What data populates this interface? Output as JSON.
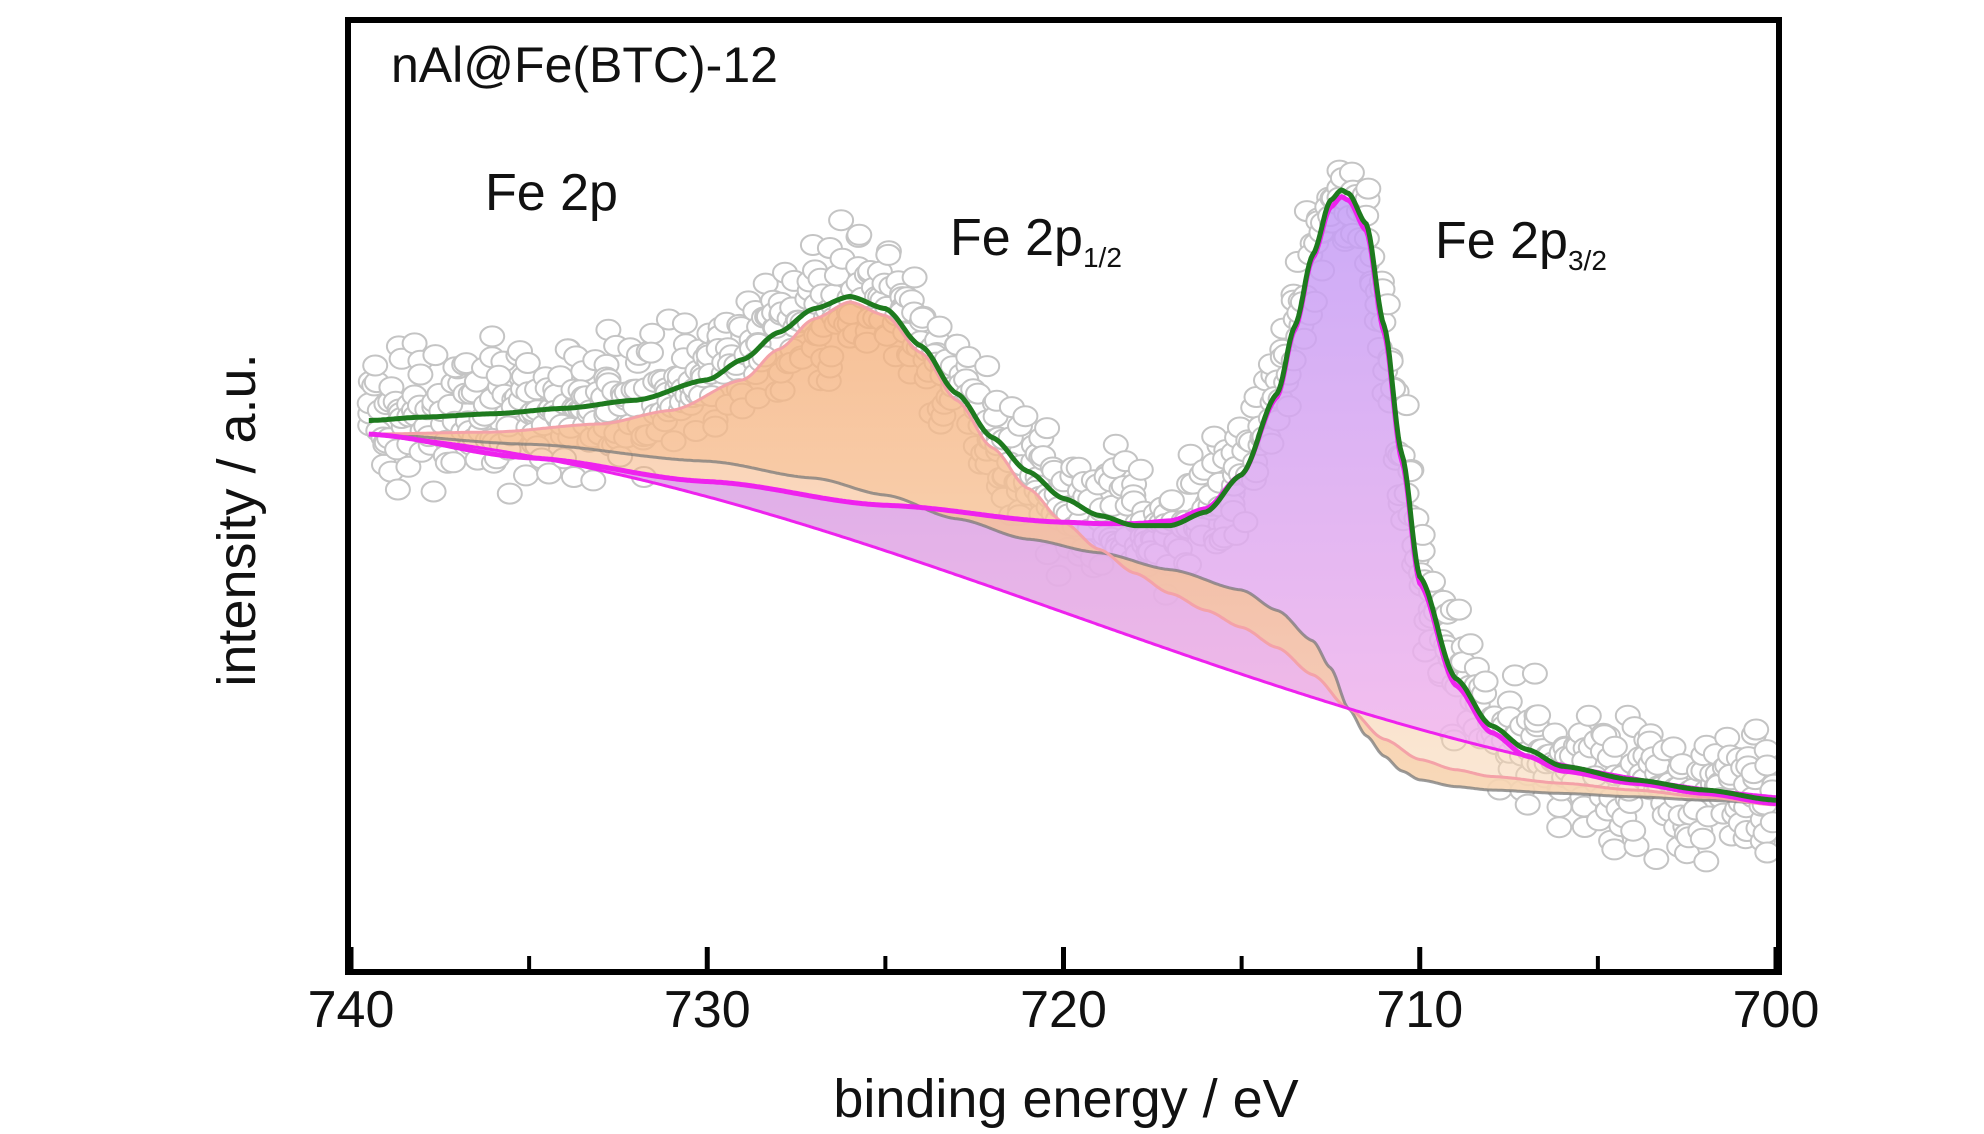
{
  "chart_data": {
    "type": "line",
    "title": "nAl@Fe(BTC)-12",
    "xlabel": "binding energy / eV",
    "ylabel": "intensity / a.u.",
    "xlim": [
      740,
      700
    ],
    "x_reversed": true,
    "ylim": [
      0,
      100
    ],
    "y_ticks_shown": false,
    "grid": false,
    "x_ticks": [
      740,
      730,
      720,
      710,
      700
    ],
    "x_minor_ticks": [
      735,
      725,
      715,
      705
    ],
    "colors": {
      "envelope": "#1e7a1e",
      "fe2p32_fit": "#ee22ee",
      "fe2p12_fill": "#f5b27e",
      "fe2p32_fill": "#c9a0f5",
      "background": "#ee22ee",
      "satellite_line": "#7a7a7a",
      "data_points": "#c4c4c4"
    },
    "annotations": [
      {
        "text": "Fe 2p",
        "sub": ""
      },
      {
        "text": "Fe 2p",
        "sub": "1/2"
      },
      {
        "text": "Fe 2p",
        "sub": "3/2"
      }
    ],
    "series": [
      {
        "role": "envelope",
        "x": [
          739.5,
          738,
          736,
          734,
          732,
          730,
          729,
          728,
          727,
          726,
          725,
          724,
          723,
          722,
          721,
          720,
          719,
          718,
          717,
          716,
          715,
          714,
          713.5,
          713,
          712.5,
          712.2,
          712,
          711.5,
          711,
          710.5,
          710,
          709,
          708,
          707,
          706,
          704,
          702,
          700
        ],
        "y": [
          66,
          66.5,
          67,
          67.8,
          69,
          72,
          75,
          79,
          82.5,
          84.3,
          82.5,
          77,
          70,
          63.5,
          58.5,
          54.5,
          52,
          50.5,
          50.5,
          52.5,
          58,
          70,
          80,
          90.5,
          98.5,
          100,
          99.5,
          95,
          80,
          61,
          43,
          28,
          21,
          17.5,
          15,
          13,
          11.5,
          10
        ]
      },
      {
        "role": "Fe 2p3/2 component",
        "x": [
          739.5,
          735,
          730,
          725,
          720,
          719,
          718,
          717,
          716,
          715,
          714,
          713.5,
          713,
          712.5,
          712.2,
          712,
          711.5,
          711,
          710.5,
          710,
          709,
          708,
          707,
          706,
          704,
          702,
          700
        ],
        "y": [
          64,
          60.5,
          57,
          53.5,
          51,
          50.8,
          50.8,
          51.2,
          53,
          58,
          69.5,
          79.5,
          90,
          97.5,
          99,
          98.5,
          94,
          79,
          60,
          42,
          27,
          20,
          16.5,
          14.3,
          12.5,
          11,
          9.5
        ]
      },
      {
        "role": "Fe 2p1/2 component",
        "x": [
          739.5,
          736,
          733,
          731,
          729,
          728,
          727,
          726,
          725,
          724,
          723,
          722,
          721,
          720,
          719,
          718,
          717,
          716,
          715,
          714,
          713,
          712,
          711,
          710,
          709,
          708,
          706,
          704,
          702,
          700
        ],
        "y": [
          64,
          64.3,
          65.5,
          67.5,
          72,
          76.5,
          81,
          83.5,
          81.5,
          76,
          69,
          62,
          56,
          51,
          47,
          43.5,
          40.5,
          38,
          35.5,
          32.5,
          28.5,
          23.5,
          19,
          16,
          14.5,
          13.5,
          12.5,
          11.5,
          10.5,
          9.3
        ]
      },
      {
        "role": "satellite fit",
        "x": [
          739.5,
          735,
          730,
          727,
          725,
          723,
          721,
          719,
          717,
          715,
          714,
          713,
          712.5,
          712,
          711.5,
          711,
          710.5,
          710,
          709,
          708,
          706,
          704,
          702,
          700
        ],
        "y": [
          64,
          62.5,
          60,
          57.5,
          55,
          51.5,
          48.5,
          46.5,
          44,
          41,
          38,
          33.5,
          29.5,
          23.5,
          19.5,
          16.5,
          14.3,
          13,
          12,
          11.5,
          11,
          10.5,
          10,
          9.5
        ]
      },
      {
        "role": "background (Shirley)",
        "x": [
          739.5,
          700
        ],
        "y": [
          64,
          10.5
        ]
      }
    ]
  }
}
